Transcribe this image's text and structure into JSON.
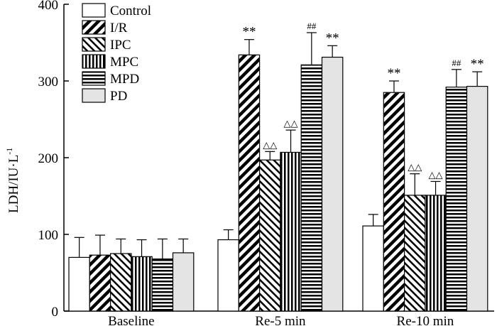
{
  "chart_data": {
    "type": "bar",
    "title": "",
    "xlabel": "",
    "ylabel": "LDH/IU·L",
    "ylabel_superscript": "-1",
    "ylim": [
      0,
      400
    ],
    "yticks": [
      "0",
      "100",
      "200",
      "300",
      "400"
    ],
    "categories": [
      "Baseline",
      "Re-5 min",
      "Re-10 min"
    ],
    "series": [
      {
        "name": "Control",
        "pattern": "solid-white",
        "values": [
          70,
          93,
          111
        ],
        "errors": [
          26,
          13,
          15
        ],
        "annotations": [
          "",
          "",
          ""
        ]
      },
      {
        "name": "I/R",
        "pattern": "diag-up",
        "values": [
          73,
          334,
          285
        ],
        "errors": [
          26,
          20,
          15
        ],
        "annotations": [
          "",
          "**",
          "**"
        ]
      },
      {
        "name": "IPC",
        "pattern": "diag-down",
        "values": [
          75,
          197,
          151
        ],
        "errors": [
          19,
          11,
          28
        ],
        "annotations": [
          "",
          "△△",
          "△△"
        ]
      },
      {
        "name": "MPC",
        "pattern": "vertical",
        "values": [
          71,
          207,
          151
        ],
        "errors": [
          22,
          29,
          18
        ],
        "annotations": [
          "",
          "△△",
          "△△"
        ]
      },
      {
        "name": "MPD",
        "pattern": "horizontal",
        "values": [
          68,
          321,
          292
        ],
        "errors": [
          26,
          42,
          23
        ],
        "annotations": [
          "",
          "##",
          "##"
        ]
      },
      {
        "name": "PD",
        "pattern": "solid-gray",
        "values": [
          76,
          331,
          293
        ],
        "errors": [
          18,
          15,
          19
        ],
        "annotations": [
          "",
          "**",
          "**"
        ]
      }
    ],
    "legend_position": "top-left"
  },
  "colors": {
    "gray_fill": "#e4e4e4",
    "stroke": "#000000"
  }
}
